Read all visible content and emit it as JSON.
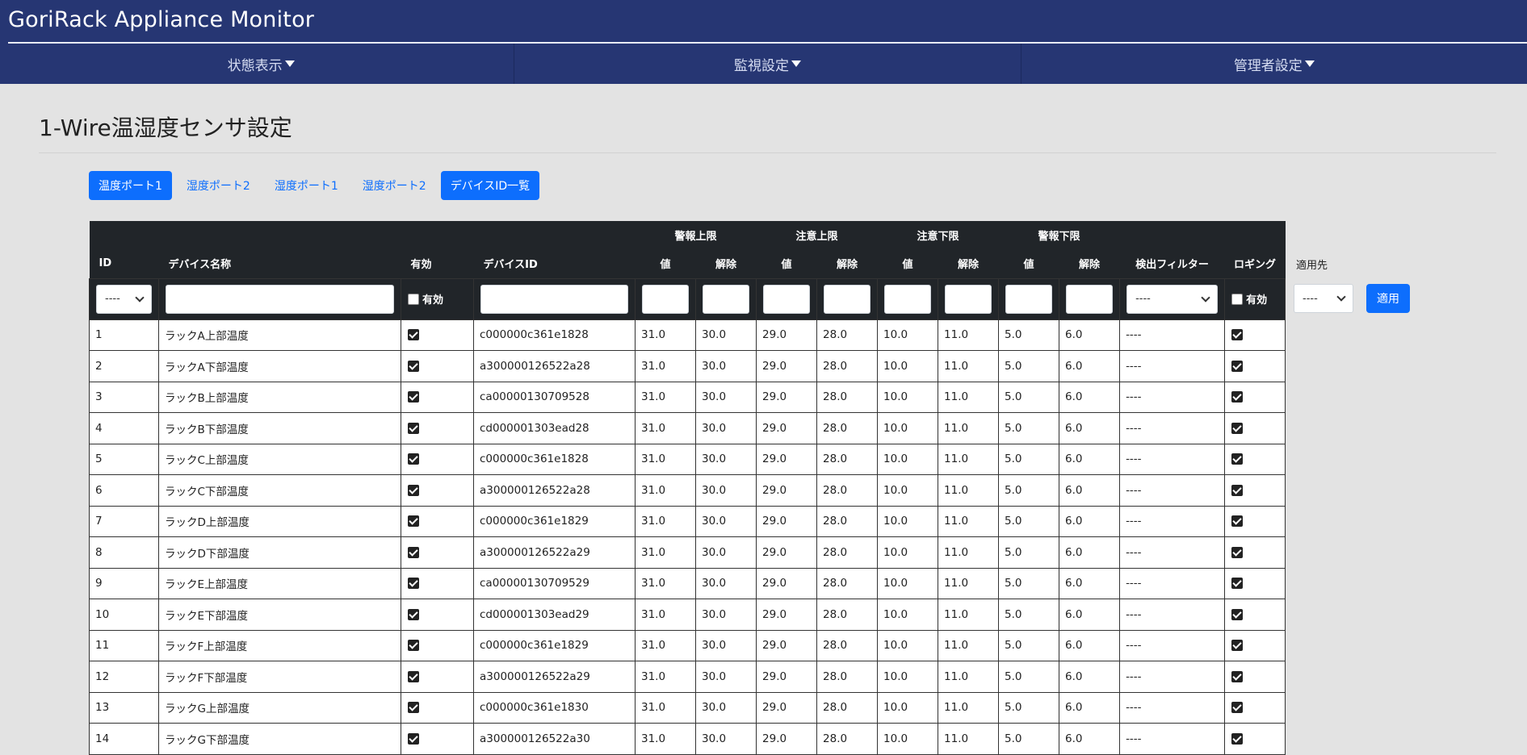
{
  "header": {
    "app_title": "GoriRack Appliance Monitor",
    "nav": [
      {
        "label": "状態表示"
      },
      {
        "label": "監視設定"
      },
      {
        "label": "管理者設定"
      }
    ]
  },
  "page": {
    "title": "1-Wire温湿度センサ設定"
  },
  "tabs": [
    {
      "label": "温度ポート1",
      "active": true
    },
    {
      "label": "湿度ポート2",
      "active": false
    },
    {
      "label": "湿度ポート1",
      "active": false
    },
    {
      "label": "湿度ポート2",
      "active": false
    },
    {
      "label": "デバイスID一覧",
      "active": true
    }
  ],
  "table": {
    "group_headers": {
      "alarm_upper": "警報上限",
      "caution_upper": "注意上限",
      "caution_lower": "注意下限",
      "alarm_lower": "警報下限"
    },
    "columns": {
      "id": "ID",
      "name": "デバイス名称",
      "enabled": "有効",
      "device_id": "デバイスID",
      "value": "値",
      "release": "解除",
      "filter": "検出フィルター",
      "logging": "ロギング"
    },
    "filters": {
      "id_select": "----",
      "enabled_label": "有効",
      "filter_select": "----",
      "logging_label": "有効"
    },
    "rows": [
      {
        "id": "1",
        "name": "ラックA上部温度",
        "device_id": "c000000c361e1828",
        "au": "31.0",
        "ar": "30.0",
        "cu": "29.0",
        "cr": "28.0",
        "cl": "10.0",
        "clr": "11.0",
        "al": "5.0",
        "alr": "6.0",
        "filter": "----"
      },
      {
        "id": "2",
        "name": "ラックA下部温度",
        "device_id": "a300000126522a28",
        "au": "31.0",
        "ar": "30.0",
        "cu": "29.0",
        "cr": "28.0",
        "cl": "10.0",
        "clr": "11.0",
        "al": "5.0",
        "alr": "6.0",
        "filter": "----"
      },
      {
        "id": "3",
        "name": "ラックB上部温度",
        "device_id": "ca00000130709528",
        "au": "31.0",
        "ar": "30.0",
        "cu": "29.0",
        "cr": "28.0",
        "cl": "10.0",
        "clr": "11.0",
        "al": "5.0",
        "alr": "6.0",
        "filter": "----"
      },
      {
        "id": "4",
        "name": "ラックB下部温度",
        "device_id": "cd000001303ead28",
        "au": "31.0",
        "ar": "30.0",
        "cu": "29.0",
        "cr": "28.0",
        "cl": "10.0",
        "clr": "11.0",
        "al": "5.0",
        "alr": "6.0",
        "filter": "----"
      },
      {
        "id": "5",
        "name": "ラックC上部温度",
        "device_id": "c000000c361e1828",
        "au": "31.0",
        "ar": "30.0",
        "cu": "29.0",
        "cr": "28.0",
        "cl": "10.0",
        "clr": "11.0",
        "al": "5.0",
        "alr": "6.0",
        "filter": "----"
      },
      {
        "id": "6",
        "name": "ラックC下部温度",
        "device_id": "a300000126522a28",
        "au": "31.0",
        "ar": "30.0",
        "cu": "29.0",
        "cr": "28.0",
        "cl": "10.0",
        "clr": "11.0",
        "al": "5.0",
        "alr": "6.0",
        "filter": "----"
      },
      {
        "id": "7",
        "name": "ラックD上部温度",
        "device_id": "c000000c361e1829",
        "au": "31.0",
        "ar": "30.0",
        "cu": "29.0",
        "cr": "28.0",
        "cl": "10.0",
        "clr": "11.0",
        "al": "5.0",
        "alr": "6.0",
        "filter": "----"
      },
      {
        "id": "8",
        "name": "ラックD下部温度",
        "device_id": "a300000126522a29",
        "au": "31.0",
        "ar": "30.0",
        "cu": "29.0",
        "cr": "28.0",
        "cl": "10.0",
        "clr": "11.0",
        "al": "5.0",
        "alr": "6.0",
        "filter": "----"
      },
      {
        "id": "9",
        "name": "ラックE上部温度",
        "device_id": "ca00000130709529",
        "au": "31.0",
        "ar": "30.0",
        "cu": "29.0",
        "cr": "28.0",
        "cl": "10.0",
        "clr": "11.0",
        "al": "5.0",
        "alr": "6.0",
        "filter": "----"
      },
      {
        "id": "10",
        "name": "ラックE下部温度",
        "device_id": "cd000001303ead29",
        "au": "31.0",
        "ar": "30.0",
        "cu": "29.0",
        "cr": "28.0",
        "cl": "10.0",
        "clr": "11.0",
        "al": "5.0",
        "alr": "6.0",
        "filter": "----"
      },
      {
        "id": "11",
        "name": "ラックF上部温度",
        "device_id": "c000000c361e1829",
        "au": "31.0",
        "ar": "30.0",
        "cu": "29.0",
        "cr": "28.0",
        "cl": "10.0",
        "clr": "11.0",
        "al": "5.0",
        "alr": "6.0",
        "filter": "----"
      },
      {
        "id": "12",
        "name": "ラックF下部温度",
        "device_id": "a300000126522a29",
        "au": "31.0",
        "ar": "30.0",
        "cu": "29.0",
        "cr": "28.0",
        "cl": "10.0",
        "clr": "11.0",
        "al": "5.0",
        "alr": "6.0",
        "filter": "----"
      },
      {
        "id": "13",
        "name": "ラックG上部温度",
        "device_id": "c000000c361e1830",
        "au": "31.0",
        "ar": "30.0",
        "cu": "29.0",
        "cr": "28.0",
        "cl": "10.0",
        "clr": "11.0",
        "al": "5.0",
        "alr": "6.0",
        "filter": "----"
      },
      {
        "id": "14",
        "name": "ラックG下部温度",
        "device_id": "a300000126522a30",
        "au": "31.0",
        "ar": "30.0",
        "cu": "29.0",
        "cr": "28.0",
        "cl": "10.0",
        "clr": "11.0",
        "al": "5.0",
        "alr": "6.0",
        "filter": "----"
      }
    ]
  },
  "apply": {
    "label": "適用先",
    "select": "----",
    "button": "適用"
  },
  "colors": {
    "header_bg": "#263673",
    "primary": "#0d6efd",
    "table_header_bg": "#212529"
  }
}
